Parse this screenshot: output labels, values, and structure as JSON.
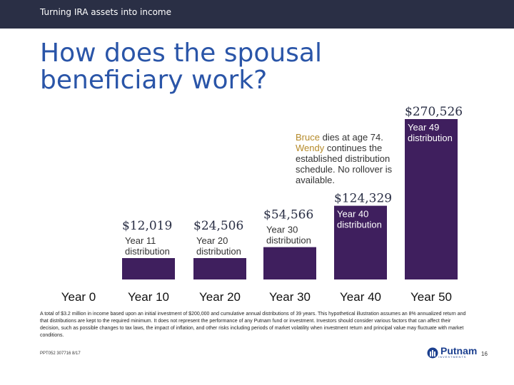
{
  "header": {
    "section": "Turning IRA assets into income"
  },
  "title": "How does the spousal beneficiary work?",
  "chart_data": {
    "type": "bar",
    "categories": [
      "Year 0",
      "Year 10",
      "Year 20",
      "Year 30",
      "Year 40",
      "Year 50"
    ],
    "values": [
      0,
      12019,
      24506,
      54566,
      124329,
      270526
    ],
    "value_labels": [
      "",
      "$12,019",
      "$24,506",
      "$54,566",
      "$124,329",
      "$270,526"
    ],
    "bar_labels": [
      "",
      "Year 11\ndistribution",
      "Year 20\ndistribution",
      "Year 30\ndistribution",
      "Year 40\ndistribution",
      "Year 49\ndistribution"
    ],
    "bar_color": "#3f1f5e",
    "ylim": [
      0,
      270526
    ],
    "title": "",
    "xlabel": "",
    "ylabel": ""
  },
  "annotation": {
    "name1": "Bruce",
    "text1": " dies at age 74.",
    "name2": "Wendy",
    "text2": " continues the established distribution schedule. No rollover is available."
  },
  "disclaimer": "A total of $3.2 million in income based upon an initial investment of $200,000 and cumulative annual distributions of 39 years. This hypothetical illustration assumes an 8% annualized return and that distributions are kept to the required minimum. It does not represent the performance of any Putnam fund or investment. Investors should consider various factors that can affect their decision, such as possible changes to tax laws, the impact of inflation, and other risks including periods of market volatility when investment return and principal value may fluctuate with market conditions.",
  "footer": {
    "code": "PPT052 307716 8/17",
    "page": "16"
  },
  "logo": {
    "name": "Putnam",
    "sub": "INVESTMENTS"
  }
}
